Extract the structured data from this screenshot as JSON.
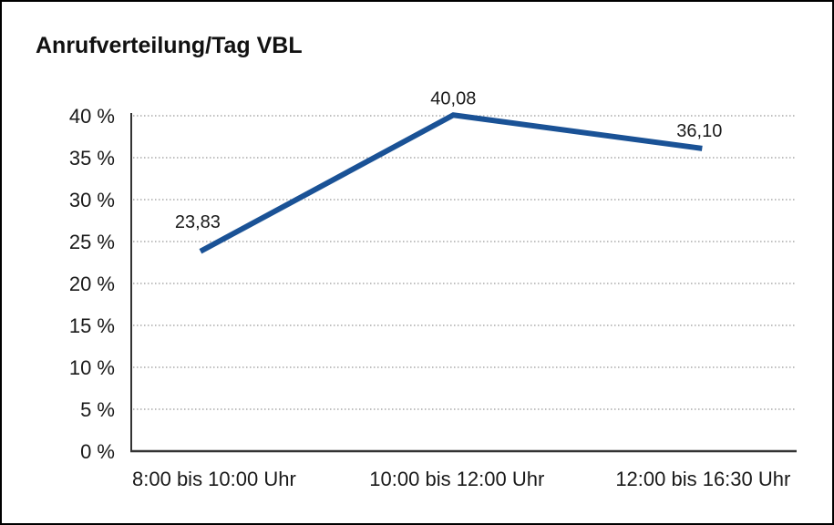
{
  "page": {
    "background": "#ffffff",
    "frame_border_color": "#000000"
  },
  "chart_data": {
    "type": "line",
    "title": "Anrufverteilung/Tag VBL",
    "categories": [
      "8:00 bis 10:00 Uhr",
      "10:00 bis 12:00 Uhr",
      "12:00 bis 16:30 Uhr"
    ],
    "values": [
      23.83,
      40.08,
      36.1
    ],
    "point_labels": [
      "23,83",
      "40,08",
      "36,10"
    ],
    "xlabel": "",
    "ylabel": "",
    "ylim": [
      0,
      40
    ],
    "ytick_values": [
      0,
      5,
      10,
      15,
      20,
      25,
      30,
      35,
      40
    ],
    "ytick_labels": [
      "0 %",
      "5 %",
      "10 %",
      "15 %",
      "20 %",
      "25 %",
      "30 %",
      "35 %",
      "40 %"
    ],
    "grid": "horizontal-dotted",
    "legend": "none",
    "colors": {
      "line": "#1a5296",
      "grid": "#999999",
      "axis": "#333333",
      "text": "#1a1a1a"
    }
  }
}
